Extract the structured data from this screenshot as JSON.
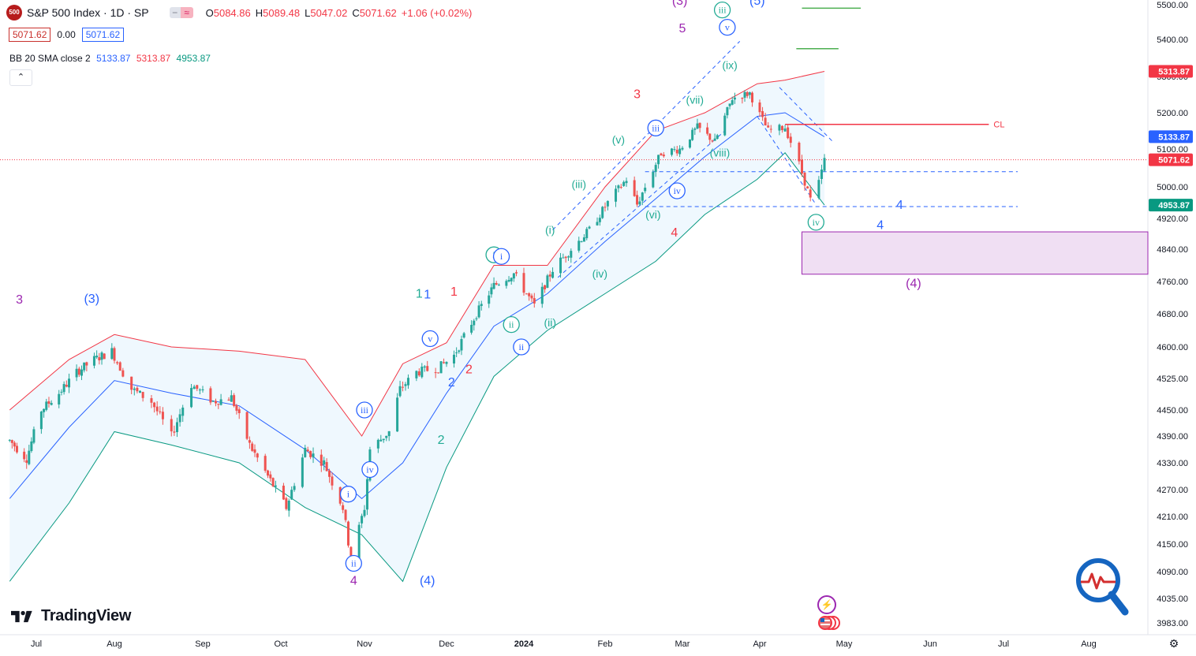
{
  "header": {
    "symbol_badge": "500",
    "title": "S&P 500 Index · 1D · SP",
    "ohlc": [
      {
        "k": "O",
        "v": "5084.86"
      },
      {
        "k": "H",
        "v": "5089.48"
      },
      {
        "k": "L",
        "v": "5047.02"
      },
      {
        "k": "C",
        "v": "5071.62"
      }
    ],
    "change": "+1.06 (+0.02%)",
    "sell_price": "5071.62",
    "spread": "0.00",
    "buy_price": "5071.62",
    "indicator_name": "BB 20 SMA close 2",
    "indicator_values": [
      "5133.87",
      "5313.87",
      "4953.87"
    ]
  },
  "brand": "TradingView",
  "colors": {
    "up": "#26a69a",
    "down": "#ef5350",
    "basis": "#2962ff",
    "upper": "#f23645",
    "lower": "#089981",
    "fill": "#2196f3",
    "purple": "#9c27b0",
    "green": "#22ab94",
    "blue": "#2962ff",
    "red": "#f23645"
  },
  "chart_data": {
    "type": "candlestick",
    "symbol": "S&P 500 Index",
    "interval": "1D",
    "y_ticks": [
      5500,
      5400,
      5300,
      5200,
      5100,
      5000,
      4920,
      4840,
      4760,
      4680,
      4600,
      4525,
      4450,
      4390,
      4330,
      4270,
      4210,
      4150,
      4090,
      4035,
      3983
    ],
    "y_tick_labels": [
      "5500.00",
      "5400.00",
      "5300.00",
      "5200.00",
      "5100.00",
      "5000.00",
      "4920.00",
      "4840.00",
      "4760.00",
      "4680.00",
      "4600.00",
      "4525.00",
      "4450.00",
      "4390.00",
      "4330.00",
      "4270.00",
      "4210.00",
      "4150.00",
      "4090.00",
      "4035.00",
      "3983.00"
    ],
    "x_labels": [
      {
        "label": "Jul",
        "date": "2023-07-01"
      },
      {
        "label": "Aug",
        "date": "2023-08-01"
      },
      {
        "label": "Sep",
        "date": "2023-09-01"
      },
      {
        "label": "Oct",
        "date": "2023-10-01"
      },
      {
        "label": "Nov",
        "date": "2023-11-01"
      },
      {
        "label": "Dec",
        "date": "2023-12-01"
      },
      {
        "label": "2024",
        "date": "2024-01-01"
      },
      {
        "label": "Feb",
        "date": "2024-02-01"
      },
      {
        "label": "Mar",
        "date": "2024-03-01"
      },
      {
        "label": "Apr",
        "date": "2024-04-01"
      },
      {
        "label": "May",
        "date": "2024-05-01"
      },
      {
        "label": "Jun",
        "date": "2024-06-01"
      },
      {
        "label": "Jul",
        "date": "2024-07-01"
      },
      {
        "label": "Aug",
        "date": "2024-08-01"
      }
    ],
    "price_series": [
      [
        "2023-06-20",
        4380
      ],
      [
        "2023-06-27",
        4340
      ],
      [
        "2023-07-03",
        4450
      ],
      [
        "2023-07-10",
        4490
      ],
      [
        "2023-07-17",
        4540
      ],
      [
        "2023-07-24",
        4570
      ],
      [
        "2023-07-31",
        4590
      ],
      [
        "2023-08-07",
        4500
      ],
      [
        "2023-08-14",
        4470
      ],
      [
        "2023-08-21",
        4390
      ],
      [
        "2023-08-28",
        4510
      ],
      [
        "2023-09-05",
        4470
      ],
      [
        "2023-09-12",
        4480
      ],
      [
        "2023-09-19",
        4370
      ],
      [
        "2023-09-26",
        4300
      ],
      [
        "2023-10-03",
        4230
      ],
      [
        "2023-10-10",
        4360
      ],
      [
        "2023-10-17",
        4330
      ],
      [
        "2023-10-24",
        4230
      ],
      [
        "2023-10-27",
        4117
      ],
      [
        "2023-11-01",
        4230
      ],
      [
        "2023-11-03",
        4360
      ],
      [
        "2023-11-10",
        4400
      ],
      [
        "2023-11-14",
        4500
      ],
      [
        "2023-11-20",
        4540
      ],
      [
        "2023-11-28",
        4550
      ],
      [
        "2023-12-04",
        4580
      ],
      [
        "2023-12-13",
        4680
      ],
      [
        "2023-12-20",
        4750
      ],
      [
        "2023-12-28",
        4780
      ],
      [
        "2024-01-05",
        4700
      ],
      [
        "2024-01-12",
        4790
      ],
      [
        "2024-01-19",
        4840
      ],
      [
        "2024-01-26",
        4890
      ],
      [
        "2024-02-02",
        4960
      ],
      [
        "2024-02-09",
        5020
      ],
      [
        "2024-02-13",
        4955
      ],
      [
        "2024-02-22",
        5090
      ],
      [
        "2024-02-29",
        5100
      ],
      [
        "2024-03-07",
        5160
      ],
      [
        "2024-03-14",
        5120
      ],
      [
        "2024-03-21",
        5240
      ],
      [
        "2024-03-28",
        5254
      ],
      [
        "2024-04-04",
        5150
      ],
      [
        "2024-04-10",
        5160
      ],
      [
        "2024-04-15",
        5060
      ],
      [
        "2024-04-19",
        4967
      ],
      [
        "2024-04-22",
        5010
      ],
      [
        "2024-04-24",
        5071
      ]
    ],
    "bollinger": {
      "period": 20,
      "source": "close",
      "stddev": 2,
      "basis": [
        [
          "2023-06-20",
          4250
        ],
        [
          "2023-07-14",
          4410
        ],
        [
          "2023-08-01",
          4520
        ],
        [
          "2023-08-21",
          4490
        ],
        [
          "2023-09-15",
          4460
        ],
        [
          "2023-10-10",
          4360
        ],
        [
          "2023-10-31",
          4250
        ],
        [
          "2023-11-15",
          4330
        ],
        [
          "2023-12-01",
          4490
        ],
        [
          "2023-12-20",
          4650
        ],
        [
          "2024-01-10",
          4730
        ],
        [
          "2024-02-01",
          4860
        ],
        [
          "2024-02-20",
          4970
        ],
        [
          "2024-03-10",
          5080
        ],
        [
          "2024-03-31",
          5190
        ],
        [
          "2024-04-10",
          5200
        ],
        [
          "2024-04-24",
          5133.87
        ]
      ],
      "upper": [
        [
          "2023-06-20",
          4450
        ],
        [
          "2023-07-14",
          4570
        ],
        [
          "2023-08-01",
          4630
        ],
        [
          "2023-08-21",
          4600
        ],
        [
          "2023-09-15",
          4590
        ],
        [
          "2023-10-10",
          4570
        ],
        [
          "2023-10-31",
          4390
        ],
        [
          "2023-11-15",
          4560
        ],
        [
          "2023-12-01",
          4610
        ],
        [
          "2023-12-20",
          4800
        ],
        [
          "2024-01-10",
          4800
        ],
        [
          "2024-02-01",
          5000
        ],
        [
          "2024-02-20",
          5150
        ],
        [
          "2024-03-10",
          5200
        ],
        [
          "2024-03-31",
          5280
        ],
        [
          "2024-04-10",
          5290
        ],
        [
          "2024-04-24",
          5313.87
        ]
      ],
      "lower": [
        [
          "2023-06-20",
          4070
        ],
        [
          "2023-07-14",
          4240
        ],
        [
          "2023-08-01",
          4400
        ],
        [
          "2023-08-21",
          4370
        ],
        [
          "2023-09-15",
          4330
        ],
        [
          "2023-10-10",
          4230
        ],
        [
          "2023-10-31",
          4170
        ],
        [
          "2023-11-15",
          4070
        ],
        [
          "2023-12-01",
          4320
        ],
        [
          "2023-12-20",
          4530
        ],
        [
          "2024-01-10",
          4640
        ],
        [
          "2024-02-01",
          4730
        ],
        [
          "2024-02-20",
          4810
        ],
        [
          "2024-03-10",
          4930
        ],
        [
          "2024-03-31",
          5020
        ],
        [
          "2024-04-10",
          5090
        ],
        [
          "2024-04-24",
          4953.87
        ]
      ]
    },
    "last_price": 5071.62,
    "price_tags": [
      {
        "value": 5313.87,
        "label": "5313.87",
        "color": "#f23645"
      },
      {
        "value": 5133.87,
        "label": "5133.87",
        "color": "#2962ff"
      },
      {
        "value": 5071.62,
        "label": "5071.62",
        "color": "#f23645"
      },
      {
        "value": 4953.87,
        "label": "4953.87",
        "color": "#089981"
      }
    ],
    "horizontal_levels": [
      {
        "from": "2024-04-10",
        "to": "2024-06-25",
        "value": 5168,
        "color": "#f23645",
        "label": "CL"
      },
      {
        "from": "2024-04-14",
        "to": "2024-04-29",
        "value": 5375,
        "color": "#4caf50"
      },
      {
        "from": "2024-04-16",
        "to": "2024-05-07",
        "value": 5490,
        "color": "#4caf50"
      }
    ],
    "target_zone": {
      "from": "2024-04-16",
      "to": "2024-08-31",
      "top": 4885,
      "bottom": 4778,
      "color": "#9c27b0"
    },
    "wave_labels": [
      {
        "text": "3",
        "date": "2023-06-24",
        "price": 4705,
        "color": "#9c27b0"
      },
      {
        "text": "(3)",
        "date": "2023-07-23",
        "price": 4707,
        "color": "#2962ff"
      },
      {
        "text": "4",
        "date": "2023-10-28",
        "price": 4063,
        "color": "#9c27b0"
      },
      {
        "text": "(4)",
        "date": "2023-11-24",
        "price": 4063,
        "color": "#2962ff"
      },
      {
        "text": "1",
        "date": "2023-11-21",
        "price": 4720,
        "color": "#22ab94"
      },
      {
        "text": "1",
        "date": "2023-11-24",
        "price": 4718,
        "color": "#2962ff"
      },
      {
        "text": "1",
        "date": "2023-12-04",
        "price": 4725,
        "color": "#f23645"
      },
      {
        "text": "2",
        "date": "2023-12-10",
        "price": 4537,
        "color": "#f23645"
      },
      {
        "text": "2",
        "date": "2023-12-03",
        "price": 4506,
        "color": "#2962ff"
      },
      {
        "text": "2",
        "date": "2023-11-29",
        "price": 4372,
        "color": "#22ab94"
      },
      {
        "text": "3",
        "date": "2024-02-13",
        "price": 5240,
        "color": "#f23645"
      },
      {
        "text": "4",
        "date": "2024-02-27",
        "price": 4873,
        "color": "#f23645"
      },
      {
        "text": "5",
        "date": "2024-03-01",
        "price": 5420,
        "color": "#9c27b0"
      },
      {
        "text": "(3)",
        "date": "2024-02-29",
        "price": 5500,
        "color": "#9c27b0"
      },
      {
        "text": "(5)",
        "date": "2024-03-31",
        "price": 5500,
        "color": "#2962ff"
      },
      {
        "text": "4",
        "date": "2024-05-21",
        "price": 4944,
        "color": "#2962ff"
      },
      {
        "text": "4",
        "date": "2024-05-14",
        "price": 4892,
        "color": "#2962ff"
      },
      {
        "text": "(4)",
        "date": "2024-05-26",
        "price": 4745,
        "color": "#9c27b0"
      },
      {
        "text": "(i)",
        "date": "2024-01-11",
        "price": 4880,
        "color": "#22ab94"
      },
      {
        "text": "(ii)",
        "date": "2024-01-11",
        "price": 4650,
        "color": "#22ab94"
      },
      {
        "text": "(iii)",
        "date": "2024-01-22",
        "price": 4997,
        "color": "#22ab94"
      },
      {
        "text": "(iv)",
        "date": "2024-01-30",
        "price": 4770,
        "color": "#22ab94"
      },
      {
        "text": "(v)",
        "date": "2024-02-06",
        "price": 5115,
        "color": "#22ab94"
      },
      {
        "text": "(vi)",
        "date": "2024-02-19",
        "price": 4920,
        "color": "#22ab94"
      },
      {
        "text": "(vii)",
        "date": "2024-03-06",
        "price": 5225,
        "color": "#22ab94"
      },
      {
        "text": "(viii)",
        "date": "2024-03-16",
        "price": 5080,
        "color": "#22ab94"
      },
      {
        "text": "(ix)",
        "date": "2024-03-20",
        "price": 5320,
        "color": "#22ab94"
      }
    ],
    "circled_labels": [
      {
        "text": "iii",
        "date": "2023-11-01",
        "price": 4450,
        "color": "#2962ff"
      },
      {
        "text": "iv",
        "date": "2023-11-03",
        "price": 4315,
        "color": "#2962ff"
      },
      {
        "text": "i",
        "date": "2023-10-26",
        "price": 4260,
        "color": "#2962ff"
      },
      {
        "text": "ii",
        "date": "2023-10-28",
        "price": 4108,
        "color": "#2962ff"
      },
      {
        "text": "v",
        "date": "2023-11-25",
        "price": 4620,
        "color": "#2962ff"
      },
      {
        "text": "i",
        "date": "2023-12-20",
        "price": 4826,
        "color": "#22ab94"
      },
      {
        "text": "i",
        "date": "2023-12-23",
        "price": 4822,
        "color": "#2962ff"
      },
      {
        "text": "ii",
        "date": "2023-12-27",
        "price": 4654,
        "color": "#22ab94"
      },
      {
        "text": "ii",
        "date": "2023-12-31",
        "price": 4600,
        "color": "#2962ff"
      },
      {
        "text": "iii",
        "date": "2024-02-20",
        "price": 5158,
        "color": "#2962ff"
      },
      {
        "text": "iv",
        "date": "2024-02-28",
        "price": 4990,
        "color": "#2962ff"
      },
      {
        "text": "iii",
        "date": "2024-03-17",
        "price": 5485,
        "color": "#22ab94"
      },
      {
        "text": "v",
        "date": "2024-03-19",
        "price": 5435,
        "color": "#2962ff"
      },
      {
        "text": "iv",
        "date": "2024-04-21",
        "price": 4910,
        "color": "#22ab94"
      }
    ]
  }
}
